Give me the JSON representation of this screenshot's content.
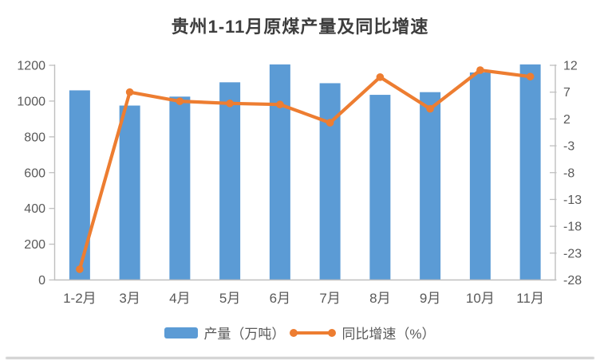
{
  "colors": {
    "bar": "#5B9BD5",
    "line": "#ED7D31",
    "axis": "#BFBFBF",
    "tick_label": "#595959",
    "title_text": "#3d3d3d"
  },
  "chart_data": {
    "type": "bar",
    "subtype": "combo-bar-line-dual-axis",
    "title": "贵州1-11月原煤产量及同比增速",
    "categories": [
      "1-2月",
      "3月",
      "4月",
      "5月",
      "6月",
      "7月",
      "8月",
      "9月",
      "10月",
      "11月"
    ],
    "series": [
      {
        "name": "产量（万吨）",
        "type": "bar",
        "axis": "left",
        "values": [
          1060,
          975,
          1025,
          1105,
          1205,
          1100,
          1035,
          1050,
          1160,
          1205
        ]
      },
      {
        "name": "同比增速（%）",
        "type": "line",
        "axis": "right",
        "values": [
          -26,
          7,
          5.3,
          4.9,
          4.7,
          1.3,
          9.8,
          3.9,
          11.1,
          9.9
        ]
      }
    ],
    "left_axis": {
      "min": 0,
      "max": 1200,
      "step": 200,
      "ticks": [
        0,
        200,
        400,
        600,
        800,
        1000,
        1200
      ]
    },
    "right_axis": {
      "min": -28,
      "max": 12,
      "step": 5,
      "ticks": [
        12,
        7,
        2,
        -3,
        -8,
        -13,
        -18,
        -23,
        -28
      ]
    },
    "grid": false,
    "legend_position": "bottom"
  },
  "legend": {
    "items": [
      {
        "label": "产量（万吨）",
        "swatch": "bar"
      },
      {
        "label": "同比增速（%）",
        "swatch": "line"
      }
    ]
  }
}
